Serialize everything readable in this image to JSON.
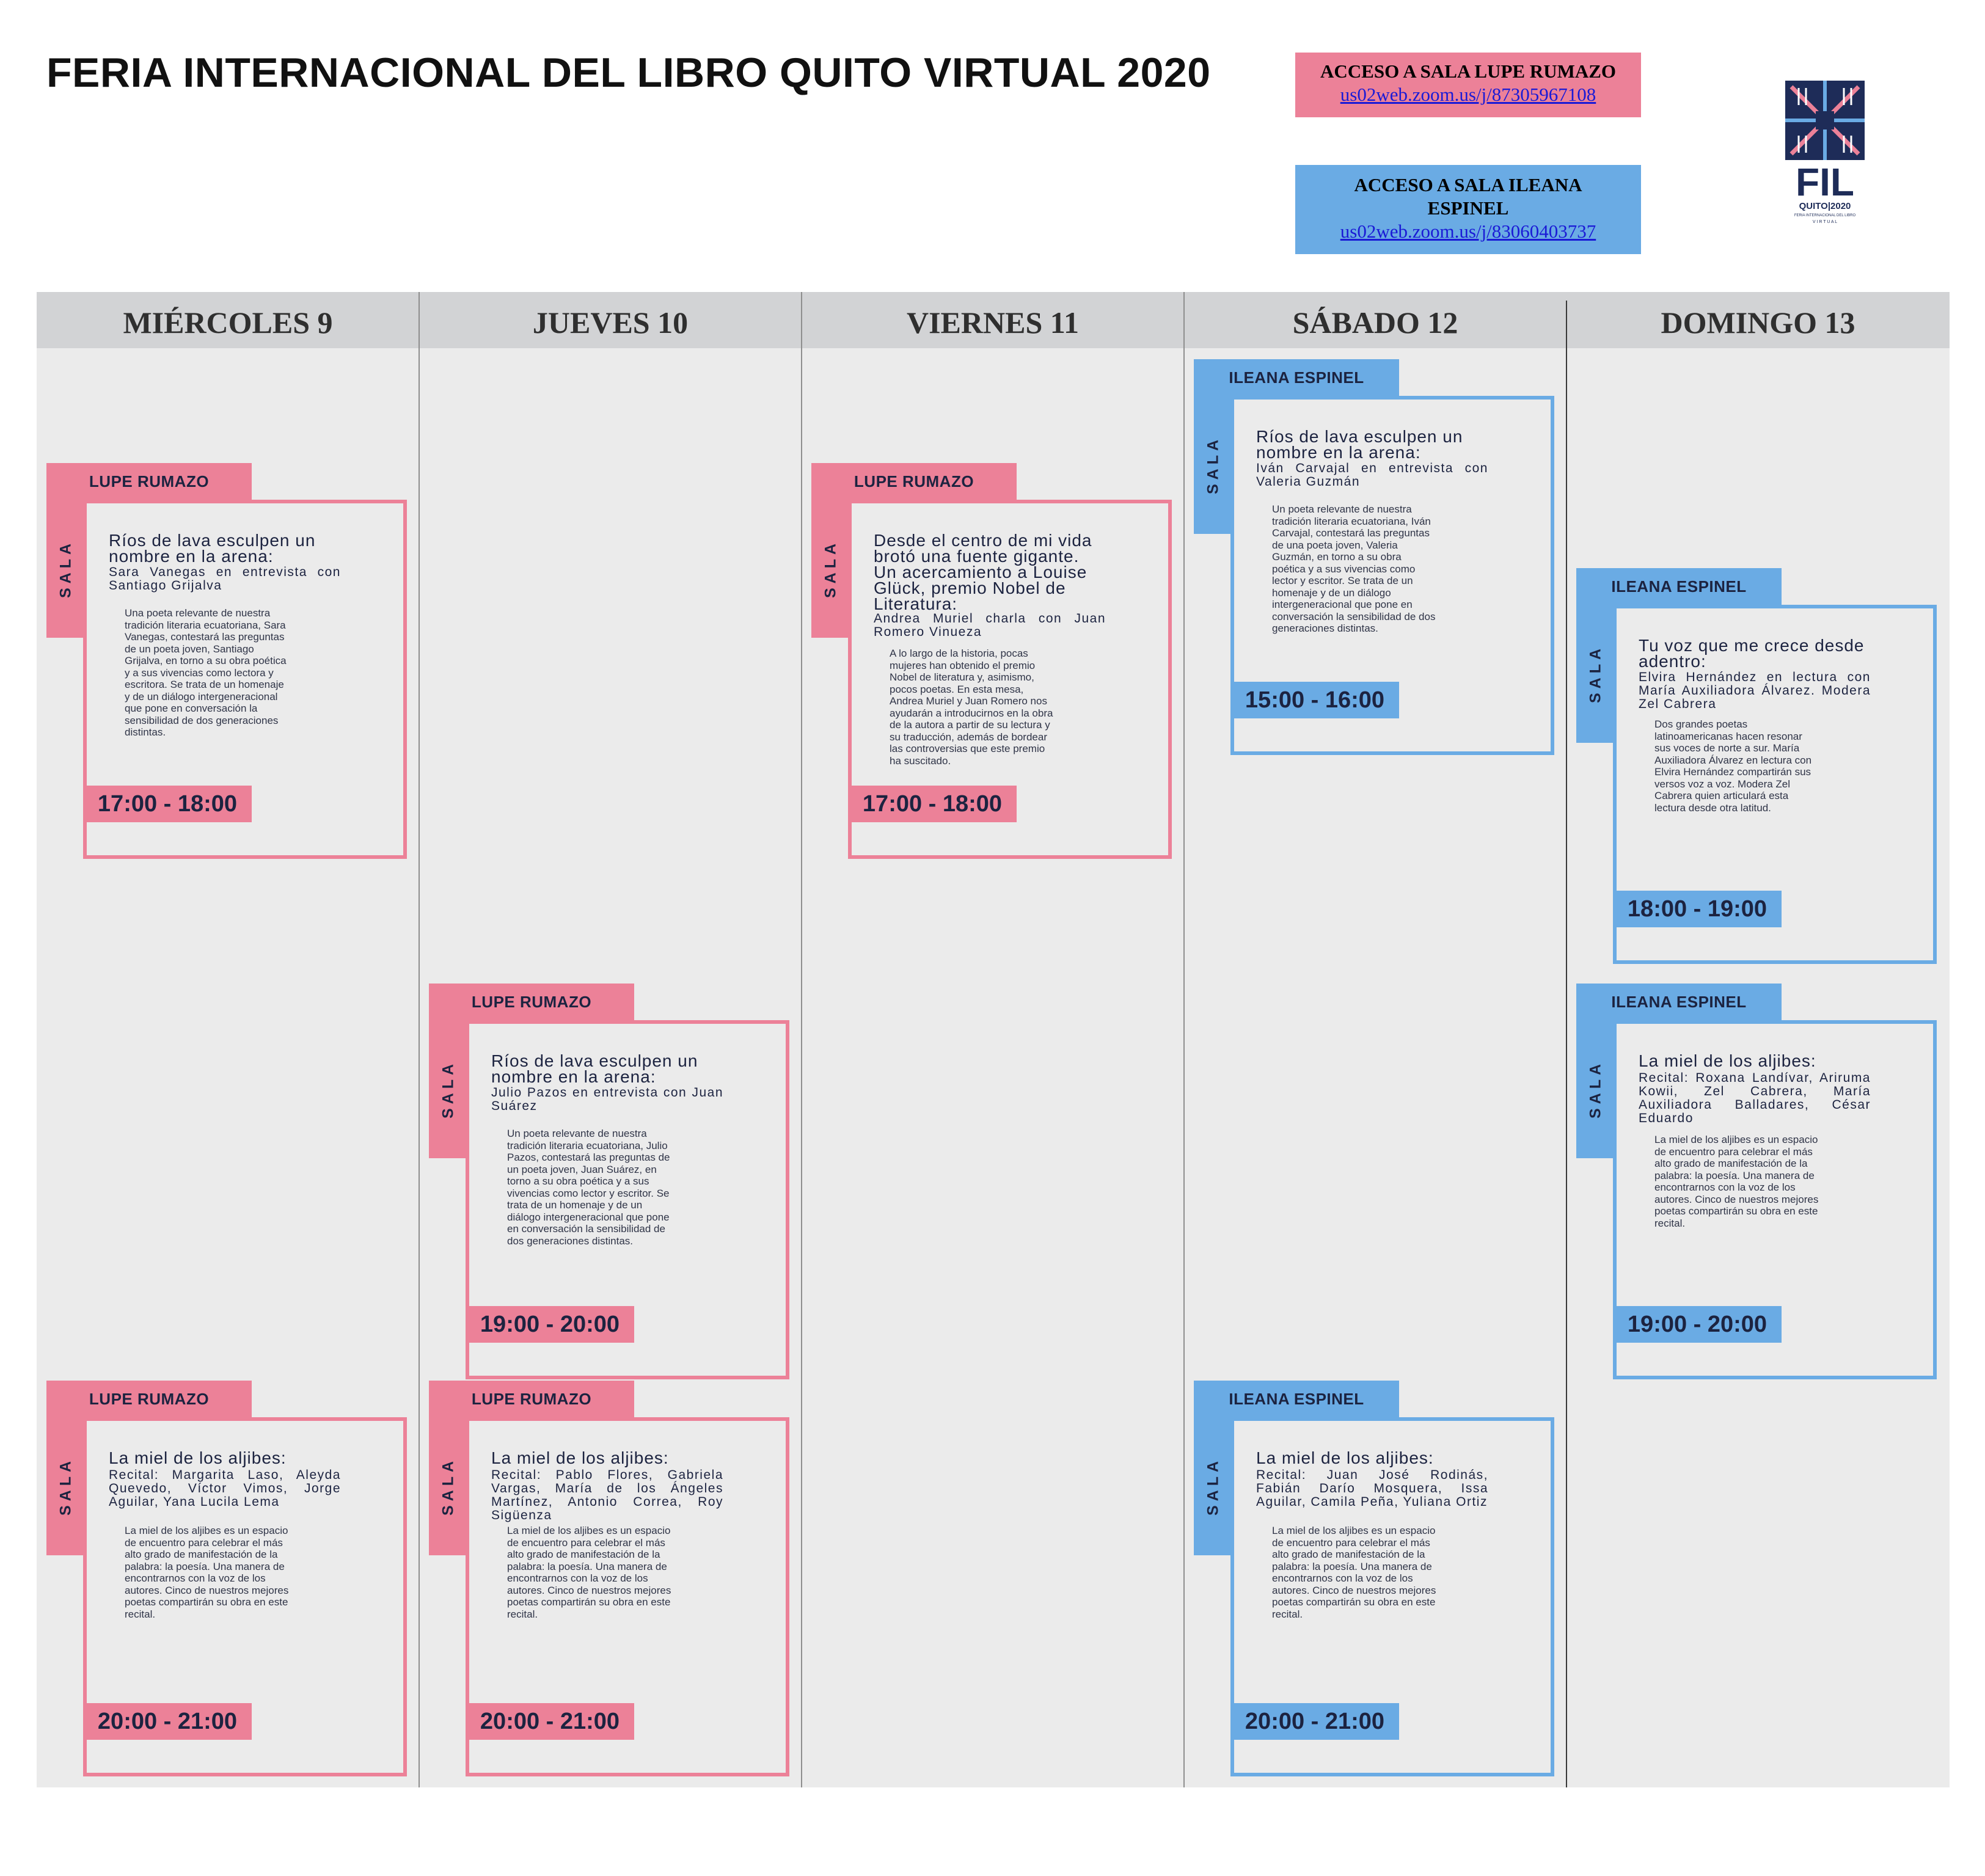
{
  "page": {
    "title": "FERIA INTERNACIONAL DEL LIBRO QUITO VIRTUAL 2020"
  },
  "access": {
    "lupe": {
      "label": "ACCESO A SALA LUPE RUMAZO",
      "url": "us02web.zoom.us/j/87305967108"
    },
    "ileana": {
      "label_line1": "ACCESO A SALA ILEANA",
      "label_line2": "ESPINEL",
      "url": "us02web.zoom.us/j/83060403737"
    }
  },
  "logo": {
    "wordmark": "FIL",
    "sub": "QUITO|2020",
    "tagline": "FERIA INTERNACIONAL DEL LIBRO",
    "virtual": "V I R T U A L"
  },
  "days": [
    "MIÉRCOLES 9",
    "JUEVES 10",
    "VIERNES 11",
    "SÁBADO 12",
    "DOMINGO 13"
  ],
  "colors": {
    "lupe": "#ec8198",
    "ileana": "#6aabe4",
    "header": "#d2d3d5",
    "background": "#ebebeb"
  },
  "sala_label": "SALA",
  "events": {
    "mie_1": {
      "room": "LUPE RUMAZO",
      "title": "Ríos de lava esculpen un nombre en la arena:",
      "subtitle": "Sara Vanegas en entrevista con Santiago Grijalva",
      "description": "Una poeta relevante de nuestra tradición literaria ecuatoriana, Sara Vanegas, contestará las preguntas de un poeta joven, Santiago Grijalva, en torno a su obra poética y a sus vivencias como lectora y escritora. Se trata de un homenaje y de un diálogo intergeneracional que pone en conversación la sensibilidad de dos generaciones distintas.",
      "time": "17:00 - 18:00"
    },
    "mie_2": {
      "room": "LUPE RUMAZO",
      "title": "La miel de los aljibes:",
      "subtitle": "Recital: Margarita Laso, Aleyda Quevedo, Víctor Vimos, Jorge Aguilar, Yana Lucila Lema",
      "description": "La miel de los aljibes es un espacio de encuentro para celebrar el más alto grado de manifestación de la palabra: la poesía. Una manera de encontrarnos con la voz de los autores. Cinco de nuestros mejores poetas compartirán su obra en este recital.",
      "time": "20:00 - 21:00"
    },
    "jue_1": {
      "room": "LUPE RUMAZO",
      "title": "Ríos de lava esculpen un nombre en la arena:",
      "subtitle": "Julio Pazos en entrevista con Juan Suárez",
      "description": "Un poeta relevante de nuestra tradición literaria ecuatoriana, Julio Pazos, contestará las preguntas de un poeta joven, Juan Suárez, en torno a su obra poética y a sus vivencias como lector y escritor. Se trata de un homenaje y de un diálogo intergeneracional que pone en conversación la sensibilidad de dos generaciones distintas.",
      "time": "19:00 - 20:00"
    },
    "jue_2": {
      "room": "LUPE RUMAZO",
      "title": "La miel de los aljibes:",
      "subtitle": "Recital: Pablo Flores, Gabriela Vargas, María de los Ángeles Martínez, Antonio Correa, Roy Sigüenza",
      "description": "La miel de los aljibes es un espacio de encuentro para celebrar el más alto grado de manifestación de la palabra: la poesía. Una manera de encontrarnos con la voz de los autores. Cinco de nuestros mejores poetas compartirán su obra en este recital.",
      "time": "20:00 - 21:00"
    },
    "vie_1": {
      "room": "LUPE RUMAZO",
      "title": "Desde el centro de mi vida brotó una fuente gigante. Un acercamiento a Louise Glück, premio Nobel de Literatura:",
      "subtitle": "Andrea Muriel charla con Juan Romero Vinueza",
      "description": "A lo largo de la historia, pocas mujeres han obtenido el premio Nobel de literatura y, asimismo, pocos poetas. En esta mesa, Andrea Muriel y Juan Romero nos ayudarán a introducirnos en la obra de la autora a partir de su lectura y su traducción, además de bordear las controversias que este premio ha suscitado.",
      "time": "17:00 - 18:00"
    },
    "sab_1": {
      "room": "ILEANA ESPINEL",
      "title": "Ríos de lava esculpen un nombre en la arena:",
      "subtitle": "Iván Carvajal en entrevista con Valeria Guzmán",
      "description": "Un poeta relevante de nuestra tradición literaria ecuatoriana, Iván Carvajal, contestará las preguntas de una poeta joven, Valeria Guzmán, en torno a su obra poética y a sus vivencias como lector y escritor. Se trata de un homenaje y de un diálogo intergeneracional que pone en conversación la sensibilidad de dos generaciones distintas.",
      "time": "15:00 - 16:00"
    },
    "sab_2": {
      "room": "ILEANA ESPINEL",
      "title": "La miel de los aljibes:",
      "subtitle": "Recital: Juan José Rodinás, Fabián Darío Mosquera, Issa Aguilar, Camila Peña, Yuliana Ortiz",
      "description": "La miel de los aljibes es un espacio de encuentro para celebrar el más alto grado de manifestación de la palabra: la poesía. Una manera de encontrarnos con la voz de los autores. Cinco de nuestros mejores poetas compartirán su obra en este recital.",
      "time": "20:00 - 21:00"
    },
    "dom_1": {
      "room": "ILEANA ESPINEL",
      "title": "Tu voz que me crece desde adentro:",
      "subtitle": "Elvira Hernández en lectura con María Auxiliadora Álvarez. Modera Zel Cabrera",
      "description": "Dos grandes poetas latinoamericanas hacen resonar sus voces de norte a sur. María Auxiliadora Álvarez en lectura con Elvira Hernández compartirán sus versos voz a voz. Modera Zel Cabrera quien articulará esta lectura desde otra latitud.",
      "time": "18:00 - 19:00"
    },
    "dom_2": {
      "room": "ILEANA ESPINEL",
      "title": "La miel de los aljibes:",
      "subtitle": "Recital: Roxana Landívar, Ariruma Kowii, Zel Cabrera, María Auxiliadora Balladares, César Eduardo",
      "description": "La miel de los aljibes es un espacio de encuentro para celebrar el más alto grado de manifestación de la palabra: la poesía. Una manera de encontrarnos con la voz de los autores. Cinco de nuestros mejores poetas compartirán su obra en este recital.",
      "time": "19:00 - 20:00"
    }
  }
}
